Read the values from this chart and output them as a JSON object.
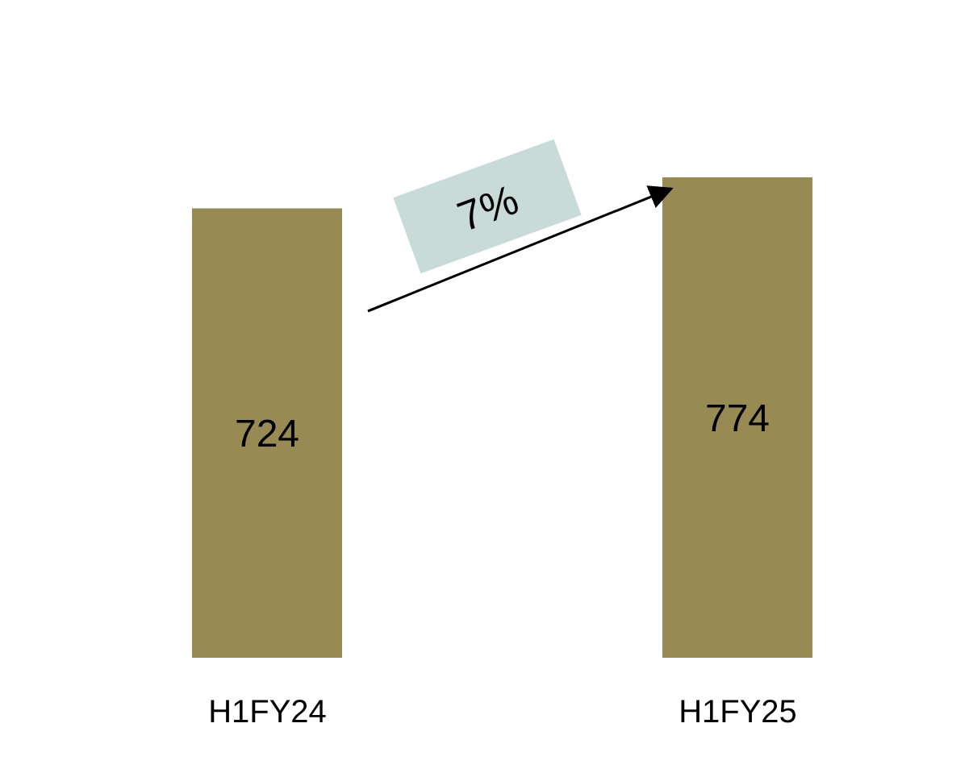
{
  "chart_data": {
    "type": "bar",
    "categories": [
      "H1FY24",
      "H1FY25"
    ],
    "values": [
      724,
      774
    ],
    "color": "#978a53",
    "data_labels": true,
    "annotations": [
      "7%"
    ]
  }
}
